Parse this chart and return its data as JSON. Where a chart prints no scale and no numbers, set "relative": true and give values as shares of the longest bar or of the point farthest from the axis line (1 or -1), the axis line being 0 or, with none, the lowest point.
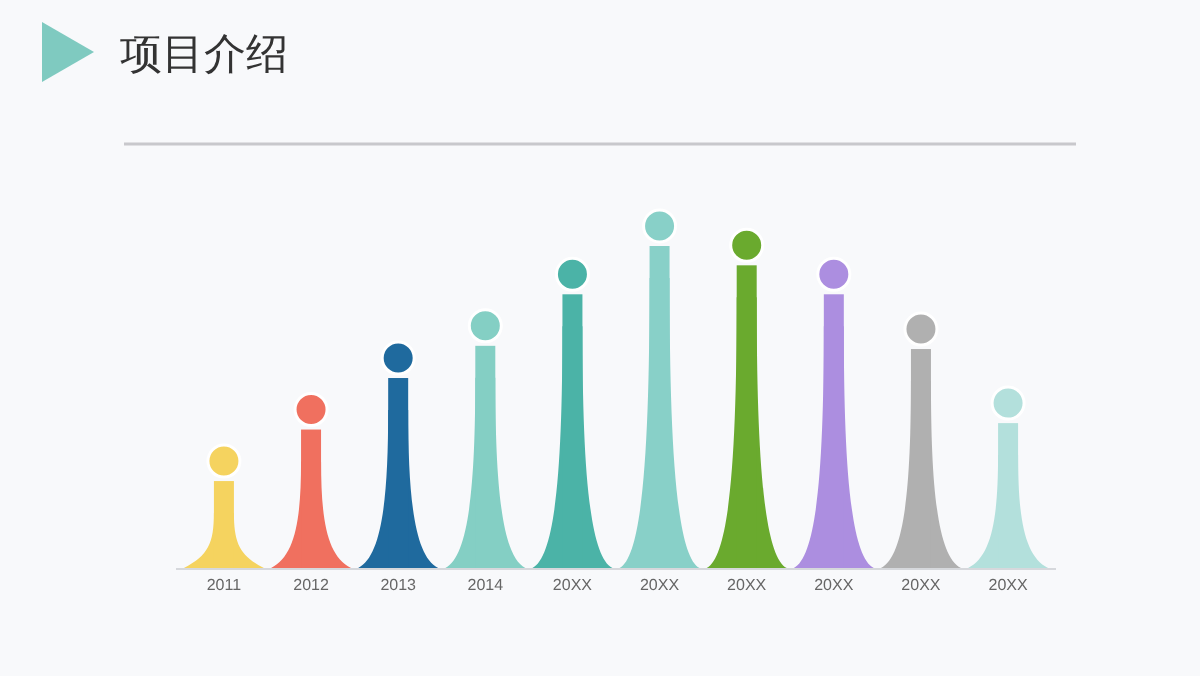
{
  "chart_data": {
    "type": "bar",
    "title": "项目介绍",
    "relative": true,
    "categories": [
      "2011",
      "2012",
      "2013",
      "2014",
      "20XX",
      "20XX",
      "20XX",
      "20XX",
      "20XX",
      "20XX"
    ],
    "values": [
      0.27,
      0.43,
      0.59,
      0.69,
      0.85,
      1,
      0.94,
      0.85,
      0.68,
      0.45
    ],
    "colors": [
      "#f5d35f",
      "#f0705f",
      "#1f6a9e",
      "#84cfc4",
      "#4bb3a7",
      "#88d0c8",
      "#6aaa2e",
      "#ac8ee0",
      "#b0b0b0",
      "#b3e0dc"
    ]
  }
}
